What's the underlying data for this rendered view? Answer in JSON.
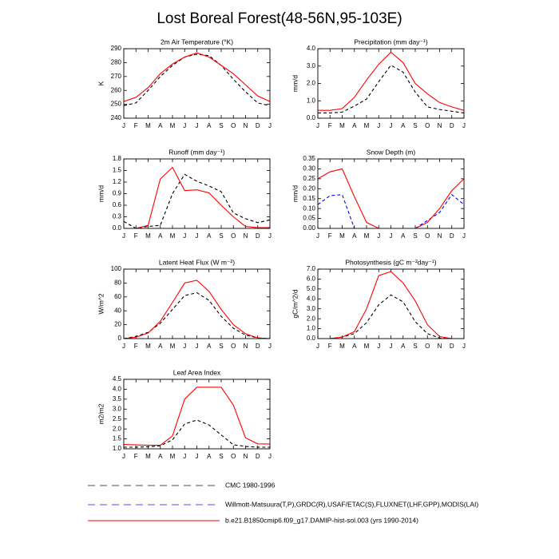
{
  "title": "Lost Boreal Forest(48-56N,95-103E)",
  "legend": [
    {
      "name": "CMC 1980-1996",
      "color": "#000000",
      "dash": true
    },
    {
      "name": "Willmott-Matsuura(T,P),GRDC(R),USAF/ETAC(S),FLUXNET(LHF,GPP),MODIS(LAI)",
      "color": "#0000ff",
      "dash": true
    },
    {
      "name": "b.e21.B1850cmip6.f09_g17.DAMIP-hist-sol.003 (yrs 1990-2014)",
      "color": "#ff0000",
      "dash": false
    }
  ],
  "chart_data": [
    {
      "type": "line",
      "title": "2m Air Temperature (°K)",
      "y_label": "K",
      "categories": [
        "J",
        "F",
        "M",
        "A",
        "M",
        "J",
        "J",
        "A",
        "S",
        "O",
        "N",
        "D",
        "J"
      ],
      "ylim": [
        240,
        290
      ],
      "yticks": [
        240,
        250,
        260,
        270,
        280,
        290
      ],
      "series": [
        {
          "color": "#000000",
          "dash": true,
          "values": [
            249,
            251,
            260,
            270,
            278,
            284,
            286,
            285,
            278,
            268,
            259,
            251,
            249
          ]
        },
        {
          "color": "#ff0000",
          "dash": false,
          "values": [
            252,
            255,
            262,
            272,
            279,
            284,
            287,
            284,
            278,
            272,
            264,
            256,
            252
          ]
        }
      ]
    },
    {
      "type": "line",
      "title": "Precipitation (mm day⁻¹)",
      "y_label": "mm/d",
      "categories": [
        "J",
        "F",
        "M",
        "A",
        "M",
        "J",
        "J",
        "A",
        "S",
        "O",
        "N",
        "D",
        "J"
      ],
      "ylim": [
        0,
        4
      ],
      "yticks": [
        {
          "value": 0,
          "label": "0.0"
        },
        {
          "value": 1,
          "label": "1.0"
        },
        {
          "value": 2,
          "label": "2.0"
        },
        {
          "value": 3,
          "label": "3.0"
        },
        {
          "value": 4,
          "label": "4.0"
        }
      ],
      "series": [
        {
          "color": "#000000",
          "dash": true,
          "values": [
            0.3,
            0.3,
            0.35,
            0.7,
            1.1,
            2.1,
            3.05,
            2.65,
            1.5,
            0.65,
            0.5,
            0.4,
            0.3
          ]
        },
        {
          "color": "#ff0000",
          "dash": false,
          "values": [
            0.45,
            0.45,
            0.55,
            1.2,
            2.2,
            3.1,
            3.8,
            3.2,
            2.0,
            1.4,
            0.9,
            0.65,
            0.45
          ]
        }
      ]
    },
    {
      "type": "line",
      "title": "Runoff (mm day⁻¹)",
      "y_label": "mm/d",
      "categories": [
        "J",
        "F",
        "M",
        "A",
        "M",
        "J",
        "J",
        "A",
        "S",
        "O",
        "N",
        "D",
        "J"
      ],
      "ylim": [
        0,
        1.8
      ],
      "yticks": [
        {
          "value": 0,
          "label": "0.0"
        },
        0.3,
        0.6,
        0.9,
        1.2,
        1.5,
        1.8
      ],
      "series": [
        {
          "color": "#000000",
          "dash": true,
          "values": [
            0.18,
            0.0,
            0.05,
            0.08,
            0.9,
            1.4,
            1.22,
            1.1,
            0.95,
            0.4,
            0.25,
            0.15,
            0.22
          ]
        },
        {
          "color": "#ff0000",
          "dash": false,
          "values": [
            null,
            0.0,
            0.08,
            1.28,
            1.58,
            0.98,
            1.0,
            0.92,
            0.6,
            0.3,
            0.05,
            0.02,
            0.02
          ]
        }
      ]
    },
    {
      "type": "line",
      "title": "Snow Depth (m)",
      "y_label": "mm/d",
      "categories": [
        "J",
        "F",
        "M",
        "A",
        "M",
        "J",
        "J",
        "A",
        "S",
        "O",
        "N",
        "D",
        "J"
      ],
      "ylim": [
        0,
        0.35
      ],
      "yticks": [
        {
          "value": 0,
          "label": "0.00"
        },
        0.05,
        {
          "value": 0.1,
          "label": "0.10"
        },
        0.15,
        {
          "value": 0.2,
          "label": "0.20"
        },
        0.25,
        {
          "value": 0.3,
          "label": "0.30"
        },
        0.35
      ],
      "series": [
        {
          "color": "#0000ff",
          "dash": true,
          "values": [
            0.12,
            0.165,
            0.17,
            0,
            null,
            null,
            null,
            null,
            0,
            0.04,
            0.08,
            0.17,
            0.12
          ]
        },
        {
          "color": "#ff0000",
          "dash": false,
          "values": [
            0.25,
            0.285,
            0.3,
            0.16,
            0.03,
            0,
            null,
            null,
            0,
            0.03,
            0.1,
            0.19,
            0.25
          ]
        }
      ]
    },
    {
      "type": "line",
      "title": "Latent Heat Flux (W m⁻²)",
      "y_label": "W/m^2",
      "categories": [
        "J",
        "F",
        "M",
        "A",
        "M",
        "J",
        "J",
        "A",
        "S",
        "O",
        "N",
        "D",
        "J"
      ],
      "ylim": [
        0,
        100
      ],
      "yticks": [
        0,
        20,
        40,
        60,
        80,
        100
      ],
      "series": [
        {
          "color": "#000000",
          "dash": true,
          "values": [
            0,
            3,
            9,
            22,
            42,
            62,
            66,
            55,
            32,
            15,
            5,
            1,
            0
          ]
        },
        {
          "color": "#ff0000",
          "dash": false,
          "values": [
            0,
            2,
            8,
            25,
            52,
            80,
            84,
            68,
            42,
            20,
            7,
            1,
            0
          ]
        }
      ]
    },
    {
      "type": "line",
      "title": "Photosynthesis (gC m⁻²day⁻¹)",
      "y_label": "gC/m^2/d",
      "categories": [
        "J",
        "F",
        "M",
        "A",
        "M",
        "J",
        "J",
        "A",
        "S",
        "O",
        "N",
        "D",
        "J"
      ],
      "ylim": [
        0,
        7
      ],
      "yticks": [
        {
          "value": 0,
          "label": "0.0"
        },
        {
          "value": 1,
          "label": "1.0"
        },
        {
          "value": 2,
          "label": "2.0"
        },
        {
          "value": 3,
          "label": "3.0"
        },
        {
          "value": 4,
          "label": "4.0"
        },
        {
          "value": 5,
          "label": "5.0"
        },
        {
          "value": 6,
          "label": "6.0"
        },
        {
          "value": 7,
          "label": "7.0"
        }
      ],
      "series": [
        {
          "color": "#000000",
          "dash": true,
          "values": [
            0,
            0,
            0.15,
            0.5,
            1.6,
            3.4,
            4.4,
            3.7,
            1.7,
            0.5,
            0.05,
            0,
            0
          ]
        },
        {
          "color": "#ff0000",
          "dash": false,
          "values": [
            0,
            0,
            0.15,
            0.7,
            3.0,
            6.35,
            6.75,
            5.6,
            3.8,
            1.4,
            0.2,
            0,
            0
          ]
        }
      ]
    },
    {
      "type": "line",
      "title": "Leaf Area Index",
      "y_label": "m2/m2",
      "categories": [
        "J",
        "F",
        "M",
        "A",
        "M",
        "J",
        "J",
        "A",
        "S",
        "O",
        "N",
        "D",
        "J"
      ],
      "ylim": [
        1,
        4.5
      ],
      "yticks": [
        {
          "value": 1,
          "label": "1.0"
        },
        1.5,
        {
          "value": 2,
          "label": "2.0"
        },
        2.5,
        {
          "value": 3,
          "label": "3.0"
        },
        3.5,
        {
          "value": 4,
          "label": "4.0"
        },
        4.5
      ],
      "series": [
        {
          "color": "#000000",
          "dash": true,
          "values": [
            1.08,
            1.08,
            1.1,
            1.15,
            1.45,
            2.25,
            2.45,
            2.2,
            1.7,
            1.2,
            1.12,
            1.08,
            1.08
          ]
        },
        {
          "color": "#ff0000",
          "dash": false,
          "values": [
            1.22,
            1.2,
            1.18,
            1.18,
            1.65,
            3.5,
            4.1,
            4.1,
            4.1,
            3.2,
            1.55,
            1.25,
            1.24
          ]
        }
      ]
    }
  ]
}
